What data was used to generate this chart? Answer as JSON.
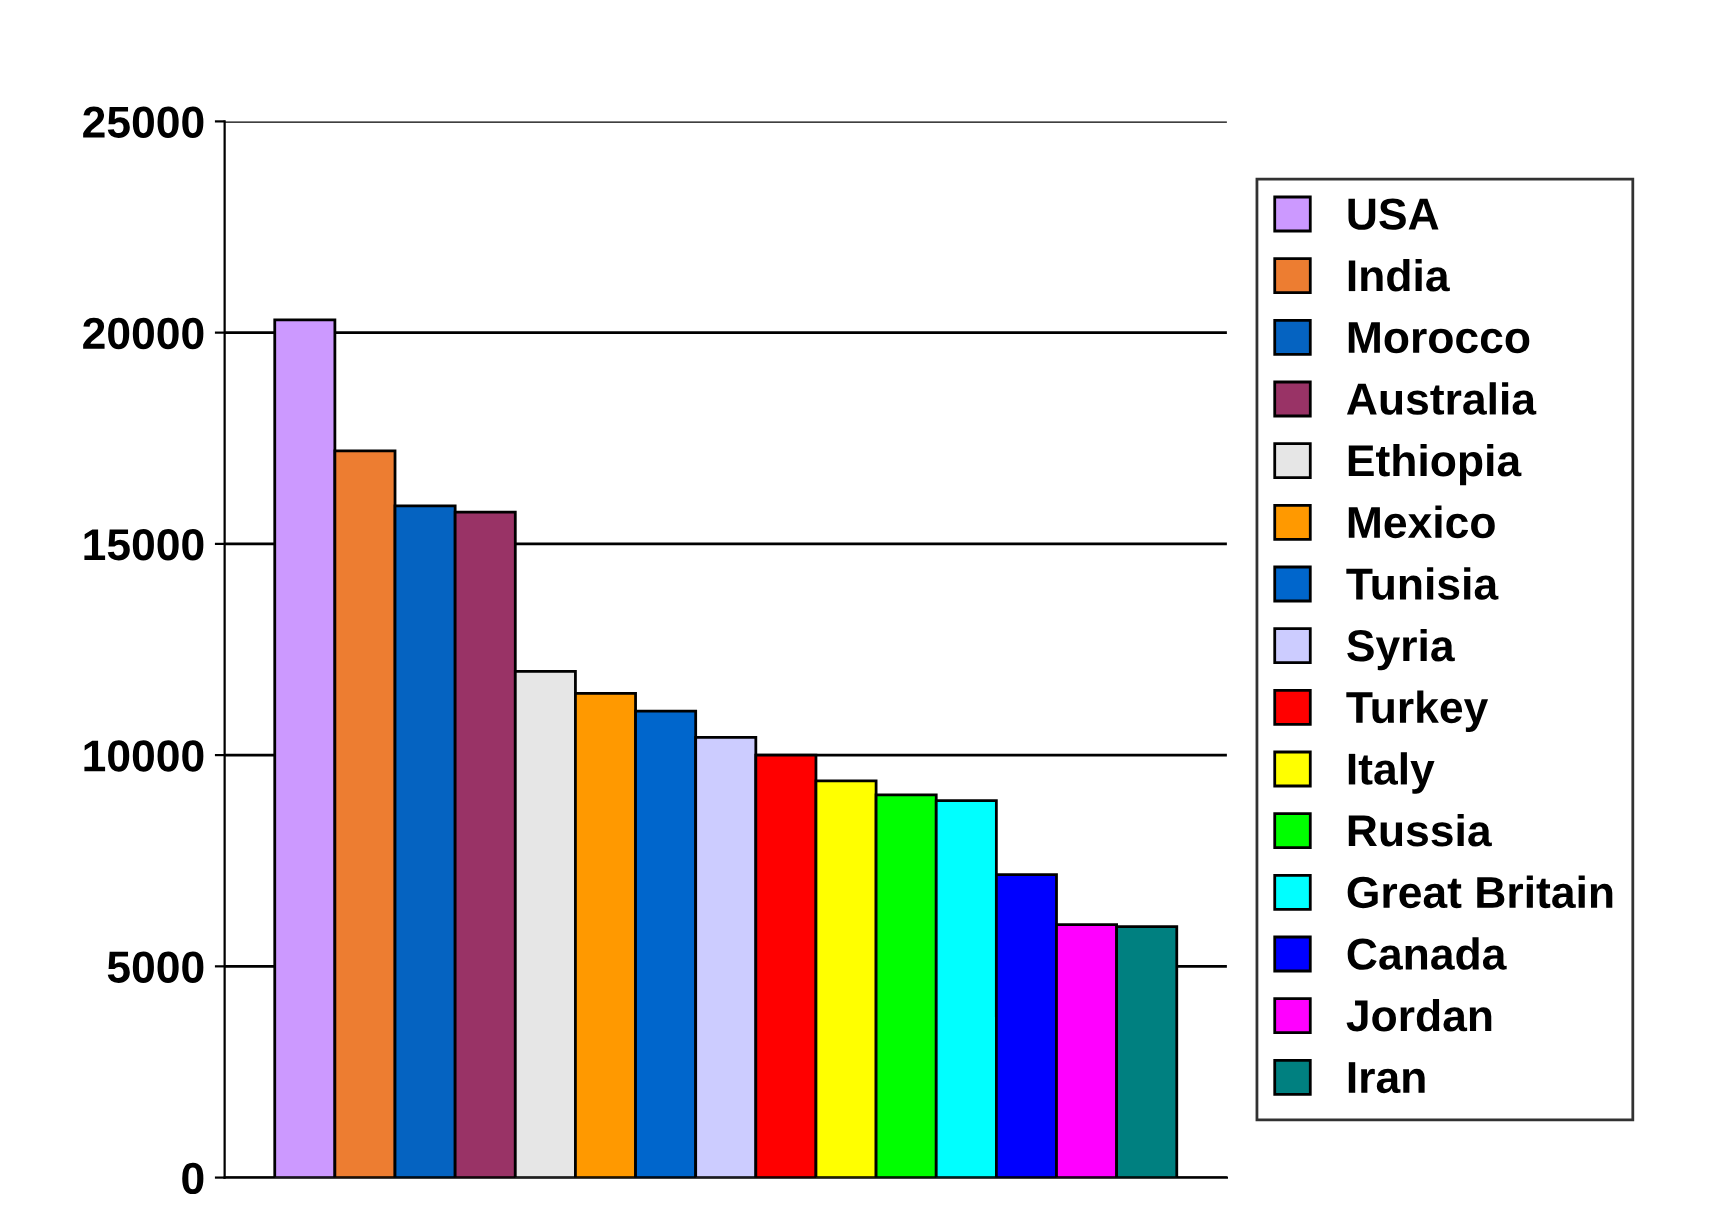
{
  "chart_data": {
    "type": "bar",
    "categories": [
      null
    ],
    "series": [
      {
        "name": "USA",
        "color": "#cc99ff",
        "values": [
          20300
        ]
      },
      {
        "name": "India",
        "color": "#ed7d31",
        "values": [
          17200
        ]
      },
      {
        "name": "Morocco",
        "color": "#0563c1",
        "values": [
          15900
        ]
      },
      {
        "name": "Australia",
        "color": "#993366",
        "values": [
          15750
        ]
      },
      {
        "name": "Ethiopia",
        "color": "#e6e6e6",
        "values": [
          11980
        ]
      },
      {
        "name": "Mexico",
        "color": "#ff9900",
        "values": [
          11460
        ]
      },
      {
        "name": "Tunisia",
        "color": "#0066cc",
        "values": [
          11040
        ]
      },
      {
        "name": "Syria",
        "color": "#ccccff",
        "values": [
          10420
        ]
      },
      {
        "name": "Turkey",
        "color": "#ff0000",
        "values": [
          10000
        ]
      },
      {
        "name": "Italy",
        "color": "#ffff00",
        "values": [
          9390
        ]
      },
      {
        "name": "Russia",
        "color": "#00ff00",
        "values": [
          9060
        ]
      },
      {
        "name": "Great Britain",
        "color": "#00ffff",
        "values": [
          8920
        ]
      },
      {
        "name": "Canada",
        "color": "#0000ff",
        "values": [
          7170
        ]
      },
      {
        "name": "Jordan",
        "color": "#ff00ff",
        "values": [
          5990
        ]
      },
      {
        "name": "Iran",
        "color": "#008080",
        "values": [
          5940
        ]
      }
    ],
    "ylim": [
      0,
      25000
    ],
    "yticks": [
      0,
      5000,
      10000,
      15000,
      20000,
      25000
    ],
    "grid": "y",
    "legend": "right",
    "tick_labels": "y"
  }
}
